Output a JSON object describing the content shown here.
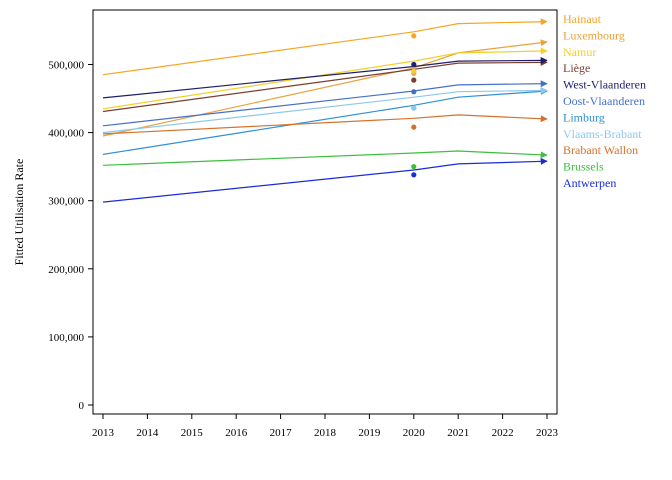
{
  "chart_data": {
    "type": "line",
    "title": "",
    "xlabel": "",
    "ylabel": "Fitted Utilisation Rate",
    "xlim": [
      2013,
      2023
    ],
    "ylim": [
      0,
      580000
    ],
    "x_ticks": [
      "2013",
      "2014",
      "2015",
      "2016",
      "2017",
      "2018",
      "2019",
      "2020",
      "2021",
      "2022",
      "2023"
    ],
    "y_ticks": [
      {
        "value": 0,
        "label": "0"
      },
      {
        "value": 100000,
        "label": "100,000"
      },
      {
        "value": 200000,
        "label": "200,000"
      },
      {
        "value": 300000,
        "label": "300,000"
      },
      {
        "value": 400000,
        "label": "400,000"
      },
      {
        "value": 500000,
        "label": "500,000"
      }
    ],
    "grid": false,
    "legend_placement": "right",
    "series": [
      {
        "name": "Hainaut",
        "color": "#f5a623",
        "line": [
          [
            2013,
            485000
          ],
          [
            2020,
            548000
          ],
          [
            2021,
            560000
          ],
          [
            2023,
            563000
          ]
        ],
        "observed": [
          2020,
          542000
        ]
      },
      {
        "name": "Luxembourg",
        "color": "#e8a33a",
        "line": [
          [
            2013,
            395000
          ],
          [
            2020,
            495000
          ],
          [
            2021,
            517000
          ],
          [
            2023,
            533000
          ]
        ],
        "observed": [
          2020,
          487000
        ]
      },
      {
        "name": "Namur",
        "color": "#f2d02b",
        "line": [
          [
            2013,
            435000
          ],
          [
            2020,
            505000
          ],
          [
            2021,
            517000
          ],
          [
            2023,
            520000
          ]
        ],
        "observed": [
          2020,
          490000
        ]
      },
      {
        "name": "Liège",
        "color": "#7a3e2e",
        "line": [
          [
            2013,
            431000
          ],
          [
            2020,
            493000
          ],
          [
            2021,
            502000
          ],
          [
            2023,
            503000
          ]
        ],
        "observed": [
          2020,
          477000
        ]
      },
      {
        "name": "West-Vlaanderen",
        "color": "#1c1f6b",
        "line": [
          [
            2013,
            451000
          ],
          [
            2020,
            497000
          ],
          [
            2021,
            505000
          ],
          [
            2023,
            506000
          ]
        ],
        "observed": [
          2020,
          500000
        ]
      },
      {
        "name": "Oost-Vlaanderen",
        "color": "#4670c8",
        "line": [
          [
            2013,
            410000
          ],
          [
            2020,
            461000
          ],
          [
            2021,
            470000
          ],
          [
            2023,
            472000
          ]
        ],
        "observed": [
          2020,
          460000
        ]
      },
      {
        "name": "Limburg",
        "color": "#2e8fd6",
        "line": [
          [
            2013,
            368000
          ],
          [
            2020,
            440000
          ],
          [
            2021,
            452000
          ],
          [
            2023,
            461000
          ]
        ],
        "observed": [
          2020,
          436000
        ]
      },
      {
        "name": "Vlaams-Brabant",
        "color": "#8cc8ee",
        "line": [
          [
            2013,
            400000
          ],
          [
            2020,
            452000
          ],
          [
            2021,
            460000
          ],
          [
            2023,
            462000
          ]
        ],
        "observed": [
          2020,
          436000
        ]
      },
      {
        "name": "Brabant Wallon",
        "color": "#d4712a",
        "line": [
          [
            2013,
            398000
          ],
          [
            2020,
            421000
          ],
          [
            2021,
            426000
          ],
          [
            2023,
            420000
          ]
        ],
        "observed": [
          2020,
          408000
        ]
      },
      {
        "name": "Brussels",
        "color": "#3dbf3d",
        "line": [
          [
            2013,
            352000
          ],
          [
            2020,
            370000
          ],
          [
            2021,
            373000
          ],
          [
            2023,
            367000
          ]
        ],
        "observed": [
          2020,
          350000
        ]
      },
      {
        "name": "Antwerpen",
        "color": "#1a2bd8",
        "line": [
          [
            2013,
            298000
          ],
          [
            2020,
            345000
          ],
          [
            2021,
            354000
          ],
          [
            2023,
            358000
          ]
        ],
        "observed": [
          2020,
          338000
        ]
      }
    ]
  }
}
